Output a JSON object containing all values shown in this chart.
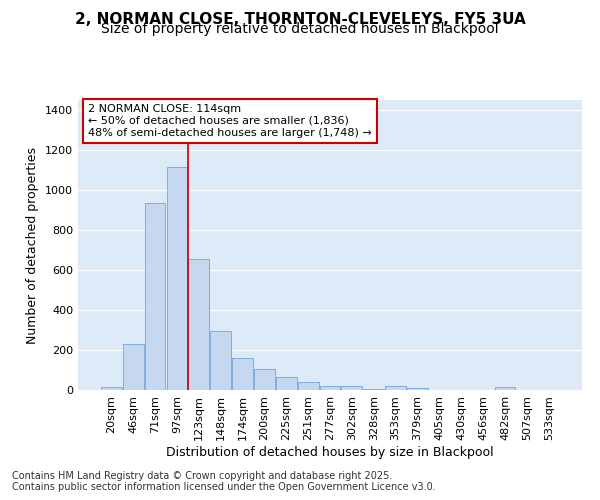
{
  "title_line1": "2, NORMAN CLOSE, THORNTON-CLEVELEYS, FY5 3UA",
  "title_line2": "Size of property relative to detached houses in Blackpool",
  "xlabel": "Distribution of detached houses by size in Blackpool",
  "ylabel": "Number of detached properties",
  "categories": [
    "20sqm",
    "46sqm",
    "71sqm",
    "97sqm",
    "123sqm",
    "148sqm",
    "174sqm",
    "200sqm",
    "225sqm",
    "251sqm",
    "277sqm",
    "302sqm",
    "328sqm",
    "353sqm",
    "379sqm",
    "405sqm",
    "430sqm",
    "456sqm",
    "482sqm",
    "507sqm",
    "533sqm"
  ],
  "values": [
    15,
    230,
    935,
    1115,
    655,
    295,
    158,
    105,
    65,
    40,
    22,
    18,
    5,
    18,
    8,
    0,
    0,
    0,
    15,
    0,
    0
  ],
  "bar_color": "#c5d8f0",
  "bar_edge_color": "#5b9bd5",
  "plot_bg_color": "#ddeaf8",
  "figure_bg_color": "#ffffff",
  "grid_color": "#ffffff",
  "red_line_index": 4,
  "red_line_color": "#cc0000",
  "annotation_text_line1": "2 NORMAN CLOSE: 114sqm",
  "annotation_text_line2": "← 50% of detached houses are smaller (1,836)",
  "annotation_text_line3": "48% of semi-detached houses are larger (1,748) →",
  "annotation_box_color": "#ffffff",
  "annotation_box_edge": "#cc0000",
  "ylim": [
    0,
    1450
  ],
  "yticks": [
    0,
    200,
    400,
    600,
    800,
    1000,
    1200,
    1400
  ],
  "footer_text": "Contains HM Land Registry data © Crown copyright and database right 2025.\nContains public sector information licensed under the Open Government Licence v3.0.",
  "title1_fontsize": 11,
  "title2_fontsize": 10,
  "axis_label_fontsize": 9,
  "tick_fontsize": 8,
  "annotation_fontsize": 8,
  "footer_fontsize": 7
}
